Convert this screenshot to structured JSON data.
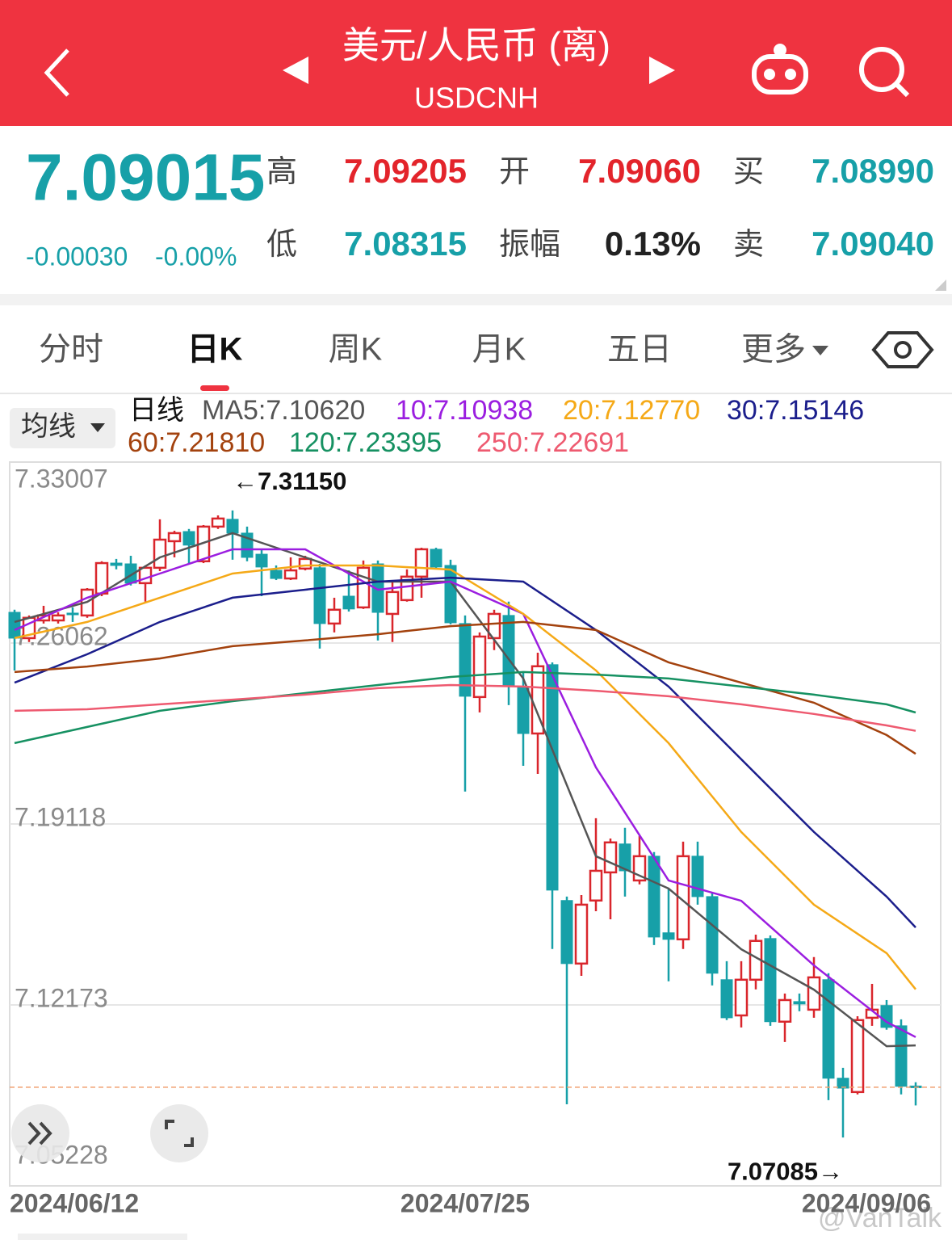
{
  "header": {
    "title": "美元/人民币 (离)",
    "subtitle": "USDCNH"
  },
  "quote": {
    "price": "7.09015",
    "change": "-0.00030",
    "change_pct": "-0.00%",
    "fields": [
      {
        "label": "高",
        "value": "7.09205",
        "color": "#e3242b"
      },
      {
        "label": "开",
        "value": "7.09060",
        "color": "#e3242b"
      },
      {
        "label": "买",
        "value": "7.08990",
        "color": "#17a0a8"
      },
      {
        "label": "低",
        "value": "7.08315",
        "color": "#17a0a8"
      },
      {
        "label": "振幅",
        "value": "0.13%",
        "color": "#222222"
      },
      {
        "label": "卖",
        "value": "7.09040",
        "color": "#17a0a8"
      }
    ]
  },
  "tabs": [
    "分时",
    "日K",
    "周K",
    "月K",
    "五日",
    "更多"
  ],
  "indicator": {
    "button": "均线",
    "period": "日线"
  },
  "chart_data": {
    "type": "candlestick",
    "up_color": "#d9262c",
    "down_color": "#17a0a8",
    "ylim": [
      7.05228,
      7.33007
    ],
    "yticks": [
      7.33007,
      7.26062,
      7.19118,
      7.12173,
      7.05228
    ],
    "grid": true,
    "categories": [
      "2024/06/12",
      null,
      null,
      null,
      null,
      null,
      null,
      null,
      null,
      null,
      null,
      null,
      null,
      null,
      null,
      null,
      null,
      null,
      null,
      null,
      null,
      null,
      null,
      null,
      null,
      null,
      null,
      null,
      null,
      null,
      null,
      "2024/07/25",
      null,
      null,
      null,
      null,
      null,
      null,
      null,
      null,
      null,
      null,
      null,
      null,
      null,
      null,
      null,
      null,
      null,
      null,
      null,
      null,
      null,
      null,
      null,
      null,
      null,
      null,
      null,
      null,
      null,
      null,
      "2024/09/06"
    ],
    "open": [
      7.2724,
      7.2625,
      7.2693,
      7.2693,
      7.2721,
      7.2712,
      7.2796,
      7.2913,
      7.291,
      7.2836,
      7.2895,
      7.2997,
      7.3034,
      7.292,
      7.3053,
      7.3081,
      7.3028,
      7.2947,
      7.2885,
      7.2854,
      7.2892,
      7.2895,
      7.2681,
      7.2786,
      7.2743,
      7.291,
      7.2718,
      7.2771,
      7.2861,
      7.2966,
      7.2904,
      7.2681,
      7.2399,
      7.2625,
      7.2712,
      7.2439,
      7.2259,
      7.2523,
      7.1618,
      7.1376,
      7.1618,
      7.1726,
      7.1835,
      7.1695,
      7.1788,
      7.1494,
      7.1469,
      7.1788,
      7.1633,
      7.1314,
      7.1177,
      7.1314,
      7.1472,
      7.1153,
      7.123,
      7.1199,
      7.1314,
      7.0936,
      7.0883,
      7.1168,
      7.1215,
      7.1137,
      7.0906
    ],
    "high": [
      7.2734,
      7.2712,
      7.2749,
      7.2724,
      7.2743,
      7.2817,
      7.292,
      7.2929,
      7.2941,
      7.2904,
      7.3081,
      7.3037,
      7.3044,
      7.3059,
      7.3096,
      7.3115,
      7.3053,
      7.2966,
      7.2904,
      7.2935,
      7.2941,
      7.291,
      7.278,
      7.2885,
      7.2923,
      7.2923,
      7.2842,
      7.2889,
      7.2972,
      7.2972,
      7.2926,
      7.2712,
      7.2647,
      7.2734,
      7.2765,
      7.2495,
      7.2569,
      7.2532,
      7.1633,
      7.1639,
      7.1934,
      7.1856,
      7.1897,
      7.1866,
      7.1804,
      7.1664,
      7.1844,
      7.1844,
      7.1649,
      7.1385,
      7.1385,
      7.1487,
      7.1484,
      7.1261,
      7.1261,
      7.1401,
      7.1339,
      7.0976,
      7.1174,
      7.1298,
      7.1236,
      7.1162,
      7.09205
    ],
    "low": [
      7.2501,
      7.261,
      7.2681,
      7.2681,
      7.2687,
      7.2703,
      7.2786,
      7.2889,
      7.2827,
      7.2765,
      7.2882,
      7.2935,
      7.291,
      7.2913,
      7.3044,
      7.2926,
      7.292,
      7.2786,
      7.2848,
      7.2848,
      7.2885,
      7.2585,
      7.2647,
      7.2727,
      7.2737,
      7.2616,
      7.261,
      7.2765,
      7.278,
      7.2889,
      7.2678,
      7.2036,
      7.234,
      7.2579,
      7.2368,
      7.2135,
      7.2104,
      7.1432,
      7.0836,
      7.1329,
      7.1577,
      7.1546,
      7.1633,
      7.168,
      7.1447,
      7.1308,
      7.1432,
      7.1602,
      7.1292,
      7.1159,
      7.1131,
      7.1277,
      7.1137,
      7.1075,
      7.1193,
      7.1168,
      7.0852,
      7.07085,
      7.0874,
      7.1137,
      7.1122,
      7.0874,
      7.08315
    ],
    "close": [
      7.2625,
      7.2703,
      7.2712,
      7.2712,
      7.2715,
      7.2811,
      7.2913,
      7.2904,
      7.2836,
      7.2895,
      7.3003,
      7.3028,
      7.2982,
      7.3053,
      7.3084,
      7.3028,
      7.2935,
      7.2898,
      7.2854,
      7.2885,
      7.2929,
      7.2681,
      7.2734,
      7.2737,
      7.2895,
      7.2724,
      7.2802,
      7.2861,
      7.2966,
      7.2898,
      7.2684,
      7.2402,
      7.2631,
      7.2718,
      7.2445,
      7.2259,
      7.2517,
      7.1658,
      7.1376,
      7.1602,
      7.1732,
      7.1841,
      7.1732,
      7.1788,
      7.1478,
      7.1469,
      7.1788,
      7.1633,
      7.1339,
      7.1168,
      7.1314,
      7.1463,
      7.1153,
      7.1236,
      7.1221,
      7.1323,
      7.0936,
      7.0898,
      7.1159,
      7.1199,
      7.1131,
      7.0905,
      7.09015
    ],
    "last_price": 7.09015,
    "annotations": [
      {
        "x": 15,
        "value": 7.3115,
        "label": "←7.31150"
      },
      {
        "x": 57,
        "value": 7.07085,
        "label": "7.07085→"
      }
    ],
    "ma_x": [
      0,
      5,
      10,
      15,
      20,
      25,
      30,
      35,
      40,
      45,
      50,
      55,
      60,
      62
    ],
    "ma_lines": [
      {
        "name": "MA5:7.10620",
        "color": "#555555",
        "values": [
          7.2687,
          7.2764,
          7.2935,
          7.3028,
          7.2935,
          7.2842,
          7.2842,
          7.247,
          7.1788,
          7.1664,
          7.1431,
          7.1276,
          7.1059,
          7.1062
        ]
      },
      {
        "name": "10:7.10938",
        "color": "#9b1ee0",
        "values": [
          7.2656,
          7.278,
          7.2873,
          7.2966,
          7.2966,
          7.2811,
          7.2842,
          7.2718,
          7.2129,
          7.1695,
          7.1617,
          7.1369,
          7.1152,
          7.10938
        ]
      },
      {
        "name": "20:7.12770",
        "color": "#f5a917",
        "values": [
          7.2625,
          7.2687,
          7.278,
          7.2873,
          7.2904,
          7.2904,
          7.2888,
          7.2718,
          7.2501,
          7.2222,
          7.1881,
          7.1602,
          7.1416,
          7.1277
        ]
      },
      {
        "name": "30:7.15146",
        "color": "#1b1e8c",
        "values": [
          7.2454,
          7.2563,
          7.2687,
          7.278,
          7.2811,
          7.2842,
          7.2857,
          7.2842,
          7.2656,
          7.2439,
          7.216,
          7.1881,
          7.1633,
          7.15146
        ]
      },
      {
        "name": "60:7.21810",
        "color": "#a3420e",
        "values": [
          7.2495,
          7.2516,
          7.2547,
          7.2594,
          7.2616,
          7.264,
          7.2671,
          7.2687,
          7.2656,
          7.2532,
          7.2454,
          7.2377,
          7.2253,
          7.2181
        ]
      },
      {
        "name": "120:7.23395",
        "color": "#169162",
        "values": [
          7.2222,
          7.2284,
          7.2346,
          7.2383,
          7.2414,
          7.2445,
          7.2476,
          7.2495,
          7.2485,
          7.247,
          7.2439,
          7.2408,
          7.2371,
          7.23395
        ]
      },
      {
        "name": "250:7.22691",
        "color": "#ee5a70",
        "values": [
          7.2346,
          7.2352,
          7.2371,
          7.2389,
          7.2408,
          7.2433,
          7.2445,
          7.2439,
          7.2423,
          7.2402,
          7.2371,
          7.2334,
          7.229,
          7.22691
        ]
      }
    ]
  },
  "watermark": "@VanTalk"
}
